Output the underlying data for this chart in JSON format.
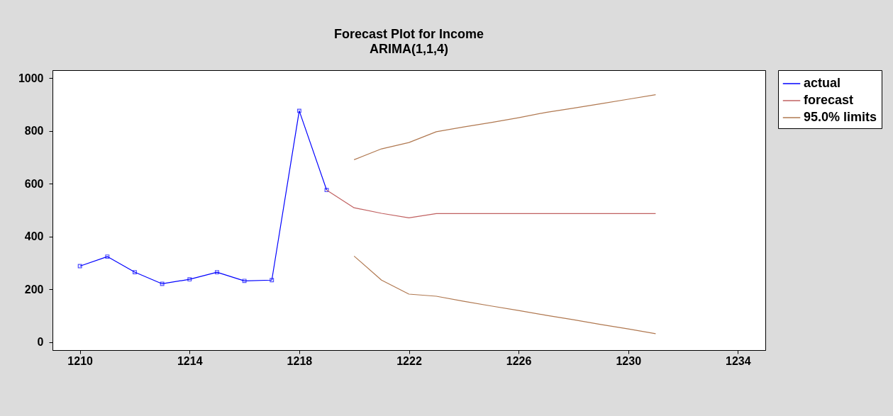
{
  "chart_data": {
    "type": "line",
    "title": "Forecast Plot for Income",
    "subtitle": "ARIMA(1,1,4)",
    "xlim": [
      1209,
      1235
    ],
    "xticks": [
      1210,
      1214,
      1218,
      1222,
      1226,
      1230,
      1234
    ],
    "ylim": [
      -30,
      1030
    ],
    "yticks": [
      0,
      200,
      400,
      600,
      800,
      1000
    ],
    "grid": false,
    "legend": "top right",
    "line_style": "solid",
    "series": [
      {
        "name": "actual",
        "color": "#0000ff",
        "marker": "square",
        "x": [
          1210,
          1211,
          1212,
          1213,
          1214,
          1215,
          1216,
          1217,
          1218,
          1219
        ],
        "values": [
          288,
          324,
          265,
          221,
          238,
          265,
          232,
          235,
          876,
          576
        ]
      },
      {
        "name": "forecast",
        "color": "#c06060",
        "marker": "none",
        "x": [
          1219,
          1220,
          1221,
          1222,
          1223,
          1224,
          1225,
          1226,
          1227,
          1228,
          1229,
          1230,
          1231
        ],
        "values": [
          576,
          509,
          488,
          471,
          487,
          487,
          487,
          487,
          487,
          487,
          487,
          487,
          487
        ]
      },
      {
        "name": "95.0% limits",
        "color": "#b07850",
        "marker": "none",
        "x": [
          1220,
          1221,
          1222,
          1223,
          1224,
          1225,
          1226,
          1227,
          1228,
          1229,
          1230,
          1231
        ],
        "values": [
          691,
          732,
          756,
          797,
          815,
          832,
          850,
          870,
          886,
          903,
          920,
          937
        ]
      },
      {
        "color": "#b07850",
        "marker": "none",
        "x": [
          1220,
          1221,
          1222,
          1223,
          1224,
          1225,
          1226,
          1227,
          1228,
          1229,
          1230,
          1231
        ],
        "values": [
          326,
          235,
          182,
          174,
          155,
          137,
          120,
          102,
          85,
          67,
          50,
          32
        ]
      }
    ]
  }
}
